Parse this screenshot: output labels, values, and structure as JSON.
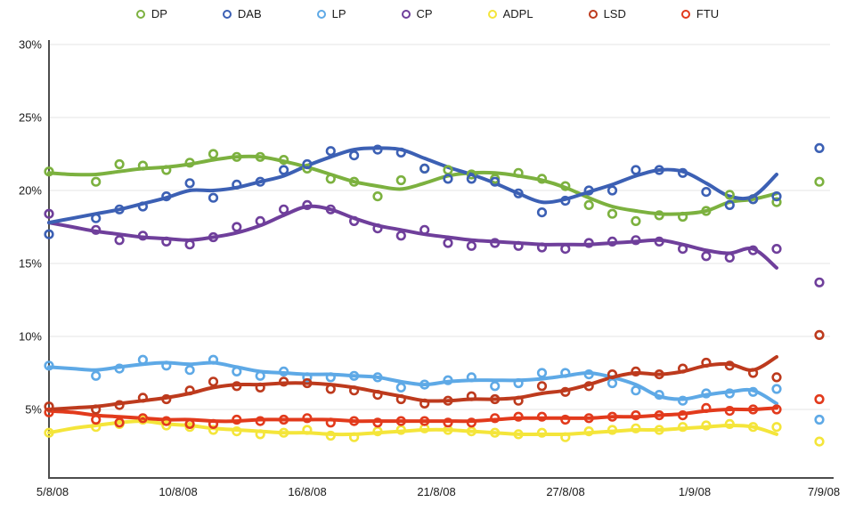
{
  "colors": {
    "grid": "#e6e6e6",
    "axis": "#4d4d4d",
    "tick_text": "#1a1a1a"
  },
  "chart_data": {
    "type": "line",
    "title": "",
    "description": "Daily polling percentages with smoothed trend lines; isolated markers at far right are election-day results (7/9/08)",
    "x_tick_labels": [
      "5/8/08",
      "10/8/08",
      "16/8/08",
      "21/8/08",
      "27/8/08",
      "1/9/08",
      "7/9/08"
    ],
    "y_tick_labels": [
      "30%",
      "25%",
      "20%",
      "15%",
      "10%",
      "5%"
    ],
    "y_tick_values": [
      30,
      25,
      20,
      15,
      10,
      5
    ],
    "ylim": [
      2,
      30.5
    ],
    "x_range_days": 33,
    "last_connected_day": 31,
    "election_day_index": 33,
    "grid": true,
    "legend_position": "top",
    "series": [
      {
        "name": "DP",
        "color": "#7cb13f",
        "points": [
          21.3,
          null,
          20.6,
          21.8,
          21.7,
          21.4,
          21.9,
          22.5,
          22.3,
          22.3,
          22.1,
          21.5,
          20.8,
          20.6,
          19.6,
          20.7,
          21.5,
          21.4,
          21.1,
          20.8,
          21.2,
          20.8,
          20.3,
          19.0,
          18.4,
          17.9,
          18.3,
          18.2,
          18.6,
          19.7,
          19.4,
          19.2
        ],
        "trend": [
          21.2,
          21.1,
          21.1,
          21.3,
          21.5,
          21.6,
          21.8,
          22.1,
          22.3,
          22.3,
          22.0,
          21.6,
          21.1,
          20.6,
          20.3,
          20.1,
          20.5,
          21.0,
          21.2,
          21.2,
          21.0,
          20.7,
          20.2,
          19.5,
          18.9,
          18.6,
          18.4,
          18.4,
          18.6,
          19.2,
          19.4,
          19.8
        ],
        "election_value": 20.6
      },
      {
        "name": "DAB",
        "color": "#3c60b4",
        "points": [
          17.0,
          null,
          18.1,
          18.7,
          18.9,
          19.6,
          20.5,
          19.5,
          20.4,
          20.6,
          21.4,
          21.8,
          22.7,
          22.4,
          22.8,
          22.6,
          21.5,
          20.8,
          20.8,
          20.6,
          19.8,
          18.5,
          19.3,
          20.0,
          20.0,
          21.4,
          21.4,
          21.2,
          19.9,
          19.0,
          19.4,
          19.6
        ],
        "trend": [
          17.8,
          18.1,
          18.4,
          18.7,
          19.1,
          19.5,
          20.0,
          20.0,
          20.2,
          20.6,
          21.0,
          21.7,
          22.3,
          22.8,
          22.9,
          22.8,
          22.2,
          21.6,
          21.1,
          20.5,
          19.8,
          19.2,
          19.4,
          19.9,
          20.4,
          21.0,
          21.4,
          21.3,
          20.5,
          19.6,
          19.6,
          21.1
        ],
        "election_value": 22.9
      },
      {
        "name": "LP",
        "color": "#5ea9e6",
        "points": [
          8.0,
          null,
          7.3,
          7.8,
          8.4,
          8.0,
          7.7,
          8.4,
          7.6,
          7.3,
          7.6,
          7.2,
          7.2,
          7.3,
          7.2,
          6.5,
          6.7,
          7.0,
          7.2,
          6.6,
          6.8,
          7.5,
          7.5,
          7.4,
          6.8,
          6.3,
          6.0,
          5.6,
          6.1,
          6.1,
          6.2,
          6.4
        ],
        "trend": [
          7.9,
          7.8,
          7.7,
          7.9,
          8.1,
          8.2,
          8.1,
          8.2,
          7.9,
          7.6,
          7.5,
          7.4,
          7.4,
          7.3,
          7.2,
          6.9,
          6.7,
          6.9,
          7.0,
          7.0,
          7.0,
          7.1,
          7.3,
          7.5,
          7.2,
          6.7,
          5.9,
          5.7,
          6.0,
          6.2,
          6.3,
          5.4
        ],
        "election_value": 4.3
      },
      {
        "name": "CP",
        "color": "#6f3f9b",
        "points": [
          18.4,
          null,
          17.3,
          16.6,
          16.9,
          16.5,
          16.3,
          16.8,
          17.5,
          17.9,
          18.7,
          19.0,
          18.7,
          17.9,
          17.4,
          16.9,
          17.3,
          16.4,
          16.2,
          16.4,
          16.2,
          16.1,
          16.0,
          16.4,
          16.5,
          16.6,
          16.5,
          16.0,
          15.5,
          15.4,
          15.9,
          16.0
        ],
        "trend": [
          17.8,
          17.5,
          17.2,
          17.0,
          16.8,
          16.7,
          16.6,
          16.8,
          17.1,
          17.6,
          18.3,
          18.9,
          18.7,
          18.1,
          17.6,
          17.3,
          17.0,
          16.8,
          16.6,
          16.5,
          16.4,
          16.3,
          16.3,
          16.3,
          16.4,
          16.5,
          16.6,
          16.3,
          15.9,
          15.7,
          16.0,
          14.7
        ],
        "election_value": 13.7
      },
      {
        "name": "ADPL",
        "color": "#f4e53a",
        "points": [
          3.4,
          null,
          3.8,
          4.0,
          4.3,
          3.9,
          3.8,
          3.6,
          3.5,
          3.3,
          3.4,
          3.6,
          3.2,
          3.1,
          3.5,
          3.6,
          3.7,
          3.6,
          3.5,
          3.4,
          3.3,
          3.4,
          3.1,
          3.5,
          3.6,
          3.7,
          3.6,
          3.8,
          3.9,
          4.0,
          3.8,
          3.8
        ],
        "trend": [
          3.4,
          3.7,
          3.9,
          4.1,
          4.2,
          4.0,
          3.9,
          3.7,
          3.6,
          3.5,
          3.4,
          3.4,
          3.3,
          3.3,
          3.4,
          3.5,
          3.6,
          3.6,
          3.5,
          3.4,
          3.3,
          3.3,
          3.3,
          3.4,
          3.5,
          3.6,
          3.6,
          3.7,
          3.8,
          3.9,
          3.8,
          3.3
        ],
        "election_value": 2.8
      },
      {
        "name": "LSD",
        "color": "#bd3a1d",
        "points": [
          5.2,
          null,
          5.0,
          5.3,
          5.8,
          5.7,
          6.3,
          6.9,
          6.6,
          6.5,
          6.9,
          6.8,
          6.4,
          6.3,
          6.0,
          5.7,
          5.4,
          5.6,
          5.9,
          5.7,
          5.6,
          6.6,
          6.2,
          6.6,
          7.4,
          7.6,
          7.4,
          7.8,
          8.2,
          8.0,
          7.5,
          7.2
        ],
        "trend": [
          5.0,
          5.1,
          5.2,
          5.4,
          5.6,
          5.8,
          6.1,
          6.5,
          6.7,
          6.7,
          6.8,
          6.8,
          6.7,
          6.5,
          6.2,
          5.9,
          5.6,
          5.6,
          5.7,
          5.7,
          5.8,
          6.1,
          6.3,
          6.7,
          7.2,
          7.5,
          7.4,
          7.6,
          8.0,
          8.1,
          7.7,
          8.6
        ],
        "election_value": 10.1
      },
      {
        "name": "FTU",
        "color": "#e23a1c",
        "points": [
          4.8,
          null,
          4.3,
          4.1,
          4.4,
          4.2,
          4.0,
          4.0,
          4.3,
          4.2,
          4.3,
          4.4,
          4.1,
          4.2,
          4.1,
          4.2,
          4.2,
          4.1,
          4.1,
          4.4,
          4.5,
          4.5,
          4.3,
          4.4,
          4.5,
          4.6,
          4.6,
          4.6,
          5.1,
          4.9,
          5.0,
          5.0
        ],
        "trend": [
          4.9,
          4.8,
          4.6,
          4.5,
          4.4,
          4.3,
          4.3,
          4.2,
          4.2,
          4.3,
          4.3,
          4.3,
          4.3,
          4.2,
          4.2,
          4.2,
          4.2,
          4.2,
          4.2,
          4.3,
          4.4,
          4.4,
          4.4,
          4.4,
          4.5,
          4.5,
          4.6,
          4.7,
          4.9,
          5.0,
          5.0,
          5.1
        ],
        "election_value": 5.7
      }
    ]
  }
}
